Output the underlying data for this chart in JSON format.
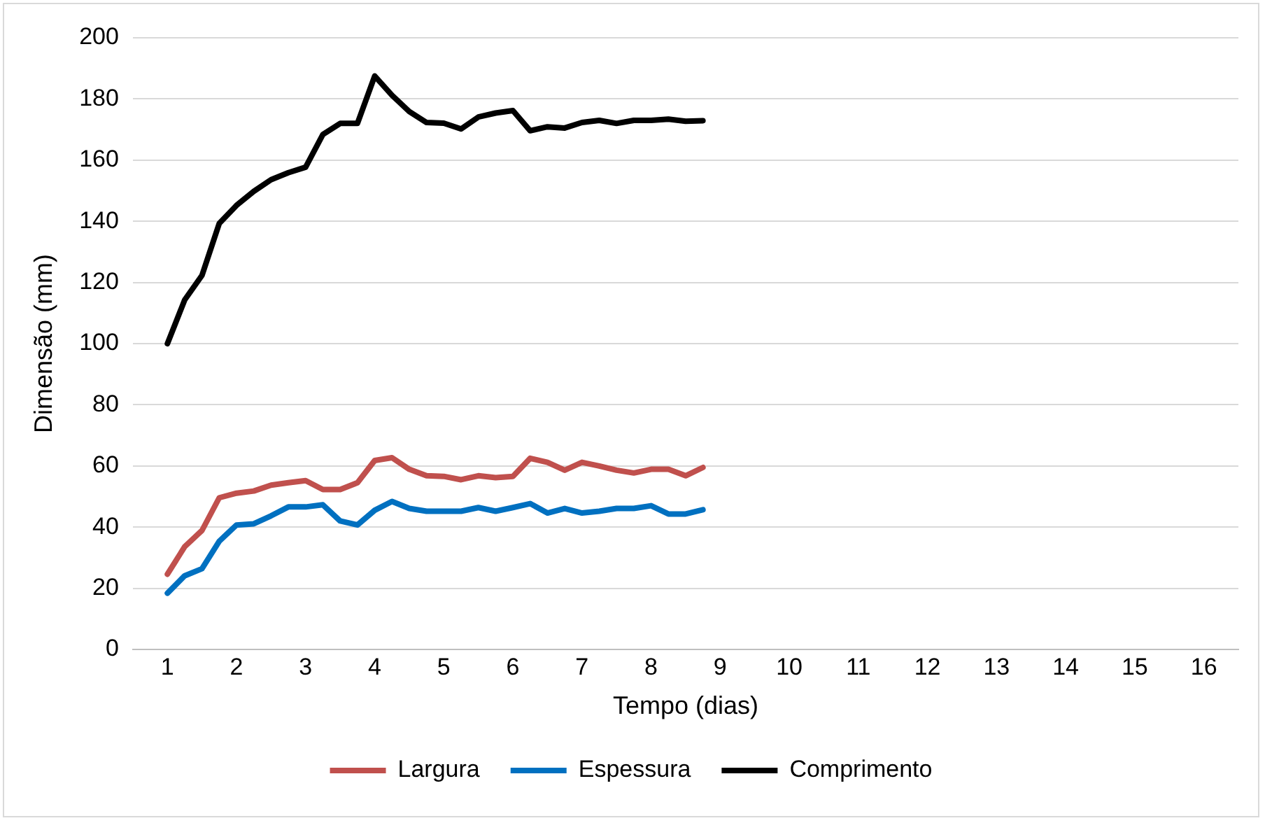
{
  "chart_data": {
    "type": "line",
    "xlabel": "Tempo (dias)",
    "ylabel": "Dimensão (mm)",
    "x": [
      1,
      1.25,
      1.5,
      1.75,
      2,
      2.25,
      2.5,
      2.75,
      3,
      3.25,
      3.5,
      3.75,
      4,
      4.25,
      4.5,
      4.75,
      5,
      5.25,
      5.5,
      5.75,
      6,
      6.25,
      6.5,
      6.75,
      7,
      7.25,
      7.5,
      7.75,
      8,
      8.25,
      8.5,
      8.75
    ],
    "series": [
      {
        "name": "Largura",
        "color": "#c0504d",
        "values": [
          24.6,
          33.6,
          38.9,
          49.6,
          51.1,
          51.8,
          53.7,
          54.5,
          55.2,
          52.3,
          52.3,
          54.5,
          61.8,
          62.7,
          58.9,
          56.8,
          56.6,
          55.5,
          56.8,
          56.2,
          56.6,
          62.5,
          61.2,
          58.6,
          61.2,
          60,
          58.6,
          57.7,
          58.9,
          58.9,
          56.8,
          59.5
        ]
      },
      {
        "name": "Espessura",
        "color": "#0070c0",
        "values": [
          18.4,
          24.1,
          26.4,
          35.4,
          40.7,
          41.1,
          43.7,
          46.6,
          46.6,
          47.3,
          42,
          40.7,
          45.5,
          48.4,
          46.1,
          45.2,
          45.2,
          45.2,
          46.4,
          45.2,
          46.4,
          47.7,
          44.6,
          46.1,
          44.6,
          45.2,
          46.1,
          46.1,
          47,
          44.3,
          44.3,
          45.7
        ]
      },
      {
        "name": "Comprimento",
        "color": "#000000",
        "values": [
          100,
          114.3,
          122.3,
          139.3,
          145.2,
          149.8,
          153.6,
          155.9,
          157.7,
          168.4,
          172,
          172,
          187.5,
          181.2,
          175.9,
          172.3,
          172.1,
          170.2,
          174.1,
          175.4,
          176.2,
          169.6,
          170.9,
          170.5,
          172.3,
          173,
          172,
          173,
          173,
          173.4,
          172.7,
          172.9
        ]
      }
    ],
    "xlim": [
      0.5,
      16.5
    ],
    "xticks": [
      1,
      2,
      3,
      4,
      5,
      6,
      7,
      8,
      9,
      10,
      11,
      12,
      13,
      14,
      15,
      16
    ],
    "ylim": [
      0,
      200
    ],
    "yticks": [
      0,
      20,
      40,
      60,
      80,
      100,
      120,
      140,
      160,
      180,
      200
    ],
    "grid": "y",
    "legend": "bottom",
    "marker": "none",
    "line_style": "solid"
  }
}
